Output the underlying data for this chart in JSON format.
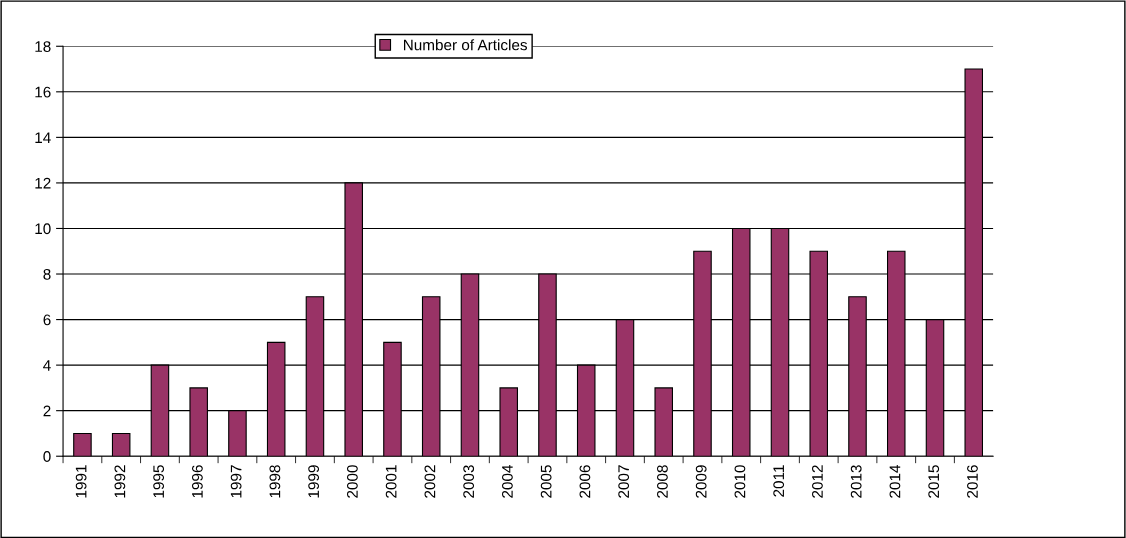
{
  "chart_data": {
    "type": "bar",
    "categories": [
      "1991",
      "1992",
      "1995",
      "1996",
      "1997",
      "1998",
      "1999",
      "2000",
      "2001",
      "2002",
      "2003",
      "2004",
      "2005",
      "2006",
      "2007",
      "2008",
      "2009",
      "2010",
      "2011",
      "2012",
      "2013",
      "2014",
      "2015",
      "2016"
    ],
    "series": [
      {
        "name": "Number of Articles",
        "color": "#993366",
        "values": [
          1,
          1,
          4,
          3,
          2,
          5,
          7,
          12,
          5,
          7,
          8,
          3,
          8,
          4,
          6,
          3,
          9,
          10,
          10,
          9,
          7,
          9,
          6,
          17
        ]
      }
    ],
    "ylim": [
      0,
      18
    ],
    "yticks": [
      0,
      2,
      4,
      6,
      8,
      10,
      12,
      14,
      16,
      18
    ],
    "grid": "y",
    "legend": "top"
  }
}
